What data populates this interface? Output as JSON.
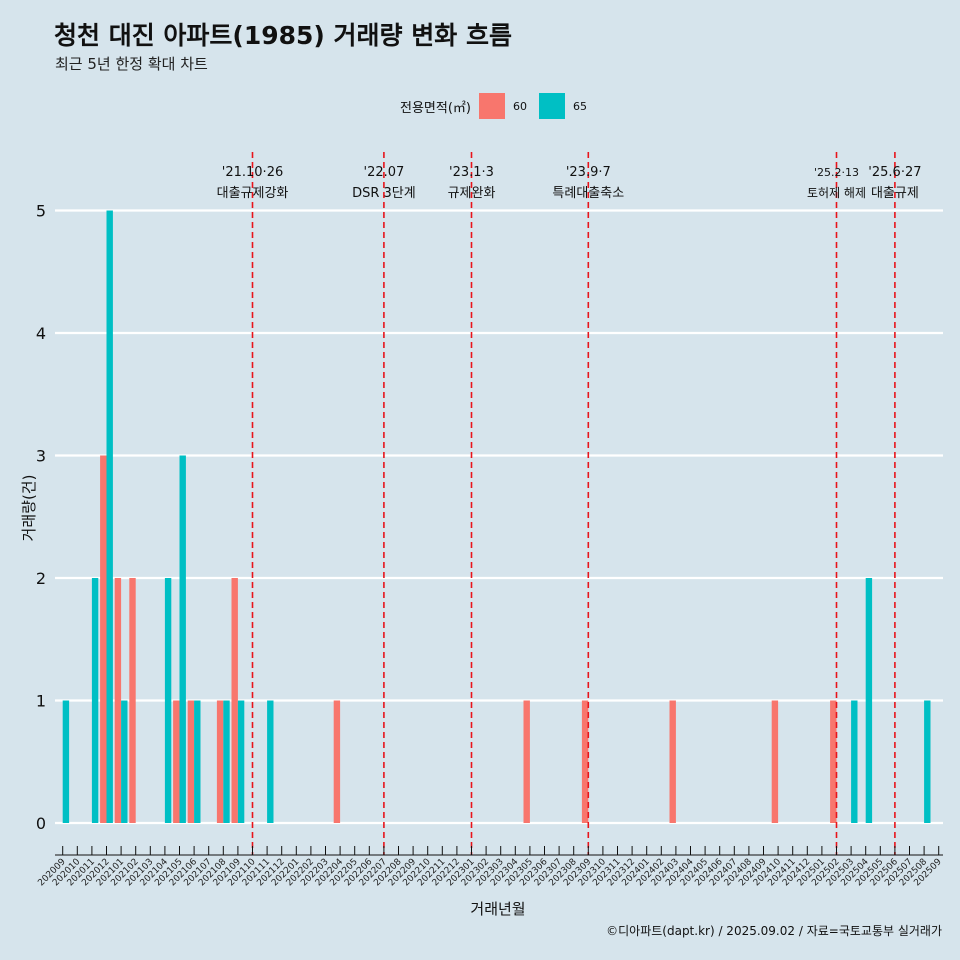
{
  "title": "청천 대진 아파트(1985) 거래량 변화 흐름",
  "subtitle": "최근 5년 한정 확대 차트",
  "caption": "©디아파트(dapt.kr) / 2025.09.02 / 자료=국토교통부 실거래가",
  "legend": {
    "title": "전용면적(㎡)",
    "items": [
      {
        "label": "60",
        "color": "#f8766d"
      },
      {
        "label": "65",
        "color": "#00bfc4"
      }
    ]
  },
  "chart_data": {
    "type": "bar",
    "xlabel": "거래년월",
    "ylabel": "거래량(건)",
    "ylim": [
      0,
      5
    ],
    "yticks": [
      0,
      1,
      2,
      3,
      4,
      5
    ],
    "categories": [
      "202009",
      "202010",
      "202011",
      "202012",
      "202101",
      "202102",
      "202103",
      "202104",
      "202105",
      "202106",
      "202107",
      "202108",
      "202109",
      "202110",
      "202111",
      "202112",
      "202201",
      "202202",
      "202203",
      "202204",
      "202205",
      "202206",
      "202207",
      "202208",
      "202209",
      "202210",
      "202211",
      "202212",
      "202301",
      "202302",
      "202303",
      "202304",
      "202305",
      "202306",
      "202307",
      "202308",
      "202309",
      "202310",
      "202311",
      "202312",
      "202401",
      "202402",
      "202403",
      "202404",
      "202405",
      "202406",
      "202407",
      "202408",
      "202409",
      "202410",
      "202411",
      "202412",
      "202501",
      "202502",
      "202503",
      "202504",
      "202505",
      "202506",
      "202507",
      "202508",
      "202509"
    ],
    "series": [
      {
        "name": "60",
        "values": [
          0,
          0,
          0,
          3,
          2,
          2,
          0,
          0,
          1,
          1,
          0,
          1,
          2,
          0,
          0,
          0,
          0,
          0,
          0,
          1,
          0,
          0,
          0,
          0,
          0,
          0,
          0,
          0,
          0,
          0,
          0,
          0,
          1,
          0,
          0,
          0,
          1,
          0,
          0,
          0,
          0,
          0,
          1,
          0,
          0,
          0,
          0,
          0,
          0,
          1,
          0,
          0,
          0,
          1,
          0,
          0,
          0,
          0,
          0,
          0,
          0
        ]
      },
      {
        "name": "65",
        "values": [
          1,
          0,
          2,
          5,
          1,
          0,
          0,
          2,
          3,
          1,
          0,
          1,
          1,
          0,
          1,
          0,
          0,
          0,
          0,
          0,
          0,
          0,
          0,
          0,
          0,
          0,
          0,
          0,
          0,
          0,
          0,
          0,
          0,
          0,
          0,
          0,
          0,
          0,
          0,
          0,
          0,
          0,
          0,
          0,
          0,
          0,
          0,
          0,
          0,
          0,
          0,
          0,
          0,
          0,
          1,
          2,
          0,
          0,
          0,
          1,
          0
        ]
      }
    ],
    "events": [
      {
        "date": "'21.10·26",
        "label": "대출규제강화",
        "at": "202110"
      },
      {
        "date": "'22.07",
        "label": "DSR 3단계",
        "at": "202207"
      },
      {
        "date": "'23.1·3",
        "label": "규제완화",
        "at": "202301"
      },
      {
        "date": "'23.9·7",
        "label": "특례대출축소",
        "at": "202309"
      },
      {
        "date": "'25.2·13",
        "label": "토허제 해제",
        "at": "202502"
      },
      {
        "date": "'25.6·27",
        "label": "대출규제",
        "at": "202506"
      }
    ],
    "grid": true,
    "legend_position": "top"
  }
}
